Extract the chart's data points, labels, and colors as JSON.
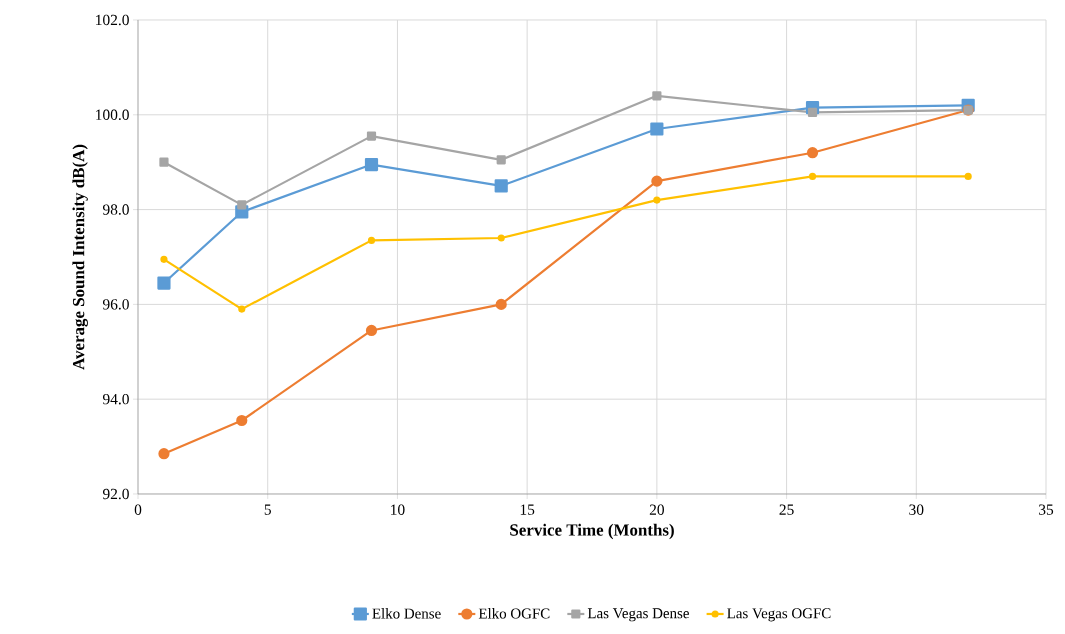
{
  "chart_data": {
    "type": "line",
    "xlabel": "Service Time (Months)",
    "ylabel": "Average Sound Intensity dB(A)",
    "x": [
      1,
      4,
      9,
      14,
      20,
      26,
      32
    ],
    "series": [
      {
        "name": "Elko Dense",
        "color": "#5b9bd5",
        "marker": "square",
        "values": [
          96.45,
          97.95,
          98.95,
          98.5,
          99.7,
          100.15,
          100.2
        ]
      },
      {
        "name": "Elko OGFC",
        "color": "#ed7d31",
        "marker": "circle",
        "values": [
          92.85,
          93.55,
          95.45,
          96.0,
          98.6,
          99.2,
          100.1
        ]
      },
      {
        "name": "Las Vegas Dense",
        "color": "#a5a5a5",
        "marker": "square",
        "values": [
          99.0,
          98.1,
          99.55,
          99.05,
          100.4,
          100.05,
          100.1
        ]
      },
      {
        "name": "Las Vegas OGFC",
        "color": "#ffc000",
        "marker": "circle",
        "values": [
          96.95,
          95.9,
          97.35,
          97.4,
          98.2,
          98.7,
          98.7
        ]
      }
    ],
    "xlim": [
      0,
      35
    ],
    "xticks": [
      0,
      5,
      10,
      15,
      20,
      25,
      30,
      35
    ],
    "ylim": [
      92,
      102
    ],
    "yticks": [
      {
        "value": 92,
        "label": "92.0"
      },
      {
        "value": 94,
        "label": "94.0"
      },
      {
        "value": 96,
        "label": "96.0"
      },
      {
        "value": 98,
        "label": "98.0"
      },
      {
        "value": 100,
        "label": "100.0"
      },
      {
        "value": 102,
        "label": "102.0"
      }
    ],
    "grid": true,
    "legend": "bottom",
    "line_style": "solid"
  }
}
